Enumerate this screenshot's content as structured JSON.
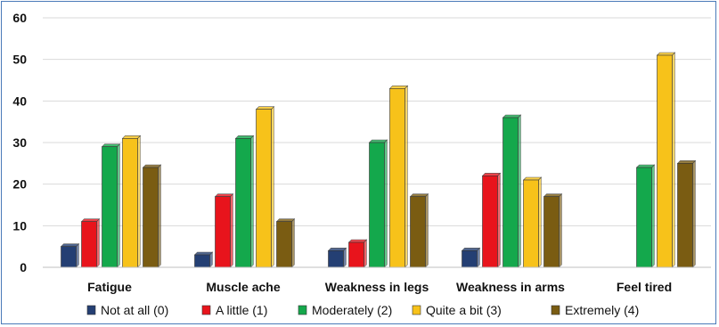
{
  "chart_data": {
    "type": "bar",
    "title": "",
    "xlabel": "",
    "ylabel": "",
    "ylim": [
      0,
      60
    ],
    "yticks": [
      0,
      10,
      20,
      30,
      40,
      50,
      60
    ],
    "grid": true,
    "legend_position": "bottom",
    "categories": [
      "Fatigue",
      "Muscle ache",
      "Weakness in legs",
      "Weakness in arms",
      "Feel tired"
    ],
    "series": [
      {
        "name": "Not at all (0)",
        "color": "#243f73",
        "values": [
          5,
          3,
          4,
          4,
          0
        ]
      },
      {
        "name": "A little (1)",
        "color": "#e8141c",
        "values": [
          11,
          17,
          6,
          22,
          0
        ]
      },
      {
        "name": "Moderately (2)",
        "color": "#14a84c",
        "values": [
          29,
          31,
          30,
          36,
          24
        ]
      },
      {
        "name": "Quite a bit (3)",
        "color": "#f7c21a",
        "values": [
          31,
          38,
          43,
          21,
          51
        ]
      },
      {
        "name": "Extremely (4)",
        "color": "#7a5c12",
        "values": [
          24,
          11,
          17,
          17,
          25
        ]
      }
    ]
  }
}
